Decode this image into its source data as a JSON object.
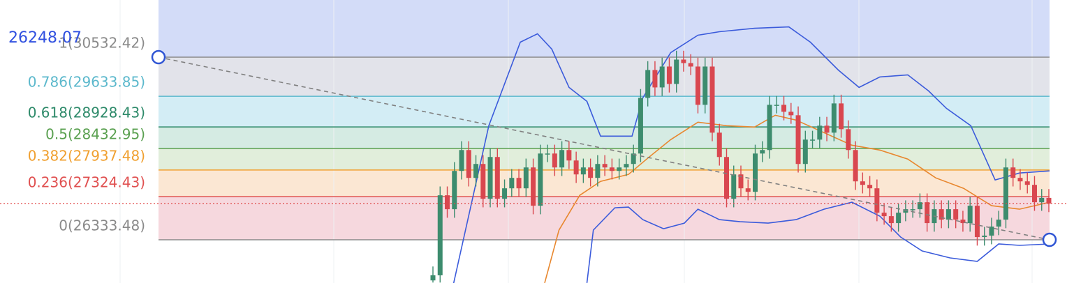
{
  "chart_data": {
    "type": "candlestick",
    "price_label": "26248.07",
    "ylim": [
      25340,
      31847
    ],
    "current_price": 27167,
    "fib_levels": [
      {
        "label": "1(30532.42)",
        "ratio": 1,
        "value": 30532.42,
        "color": "#8a8a8a",
        "fill": "#e2e3ea"
      },
      {
        "label": "0.786(29633.85)",
        "ratio": 0.786,
        "value": 29633.85,
        "color": "#5bb8cc",
        "fill": "#d3edf5"
      },
      {
        "label": "0.618(28928.43)",
        "ratio": 0.618,
        "value": 28928.43,
        "color": "#2e8a6a",
        "fill": "#d5ebe3"
      },
      {
        "label": "0.5(28432.95)",
        "ratio": 0.5,
        "value": 28432.95,
        "color": "#5aa050",
        "fill": "#e1eedb"
      },
      {
        "label": "0.382(27937.48)",
        "ratio": 0.382,
        "value": 27937.48,
        "color": "#f0a030",
        "fill": "#fbe7d3"
      },
      {
        "label": "0.236(27324.43)",
        "ratio": 0.236,
        "value": 27324.43,
        "color": "#e05050",
        "fill": "#f6d8de"
      },
      {
        "label": "0(26333.48)",
        "ratio": 0,
        "value": 26333.48,
        "color": "#8a8a8a",
        "fill": null
      }
    ],
    "up_color": "#3d8c6e",
    "down_color": "#d9474f",
    "candles": {
      "open": [
        25400,
        25517,
        27357,
        27037,
        27917,
        28397,
        27757,
        28077,
        27277,
        28237,
        27277,
        27517,
        27757,
        27517,
        27997,
        27117,
        28317,
        28317,
        27997,
        28397,
        28157,
        27837,
        27997,
        27757,
        28077,
        27997,
        27917,
        27997,
        28077,
        28317,
        29597,
        30237,
        29837,
        30317,
        29917,
        30477,
        30397,
        30317,
        29437,
        30317,
        28797,
        28237,
        27277,
        27837,
        27517,
        27437,
        28317,
        28397,
        29437,
        29437,
        29277,
        29197,
        28077,
        28637,
        28637,
        28957,
        28797,
        29469,
        28877,
        28397,
        27677,
        27597,
        27517,
        26957,
        26877,
        26717,
        26957,
        27037,
        27037,
        27197,
        26717,
        27037,
        26797,
        27037,
        26797,
        26717,
        27117,
        26397,
        26429,
        26637,
        26797,
        27997,
        27757,
        27677,
        27597,
        27197,
        27297
      ],
      "close": [
        25517,
        27357,
        27037,
        27917,
        28397,
        27757,
        28077,
        27277,
        28237,
        27277,
        27517,
        27757,
        27517,
        27997,
        27117,
        28317,
        28317,
        27997,
        28397,
        28157,
        27837,
        27997,
        27757,
        28077,
        27997,
        27917,
        27997,
        28077,
        28317,
        29597,
        30237,
        29837,
        30317,
        29917,
        30477,
        30397,
        30317,
        29437,
        30317,
        28797,
        28237,
        27277,
        27837,
        27517,
        27437,
        28317,
        28397,
        29437,
        29437,
        29277,
        29197,
        28077,
        28637,
        28637,
        28957,
        28797,
        29469,
        28877,
        28397,
        27677,
        27597,
        27517,
        26957,
        26877,
        26717,
        26957,
        27037,
        27037,
        27197,
        26717,
        27037,
        26797,
        27037,
        26797,
        26717,
        27117,
        26397,
        26429,
        26637,
        26797,
        27997,
        27757,
        27677,
        27597,
        27197,
        27297,
        27167
      ],
      "high": [
        25720,
        27560,
        27560,
        28120,
        28600,
        28600,
        28280,
        28280,
        28440,
        28440,
        27720,
        27960,
        27960,
        28200,
        28200,
        28520,
        28520,
        28520,
        28600,
        28600,
        28360,
        28200,
        28200,
        28280,
        28280,
        28200,
        28200,
        28280,
        28520,
        29800,
        30440,
        30440,
        30520,
        30520,
        30680,
        30680,
        30600,
        30520,
        30520,
        30520,
        29000,
        28440,
        28040,
        28040,
        27720,
        28520,
        28600,
        29640,
        29640,
        29640,
        29480,
        29400,
        28840,
        28840,
        29160,
        29160,
        29670,
        29670,
        29080,
        28600,
        27880,
        27800,
        27720,
        27160,
        27080,
        27160,
        27240,
        27240,
        27400,
        27400,
        27240,
        27240,
        27240,
        27240,
        27000,
        27320,
        27320,
        26630,
        26840,
        27000,
        28200,
        28200,
        27960,
        27880,
        27800,
        27500,
        27500
      ],
      "low": [
        25350,
        25350,
        26840,
        26840,
        27720,
        27560,
        27560,
        27080,
        27080,
        27080,
        27080,
        27320,
        27320,
        27320,
        26920,
        26920,
        28120,
        27800,
        27800,
        27960,
        27640,
        27640,
        27560,
        27560,
        27800,
        27720,
        27720,
        27800,
        27880,
        28120,
        29400,
        29640,
        29640,
        29720,
        29720,
        30200,
        30120,
        29240,
        29240,
        28600,
        28040,
        27080,
        27080,
        27320,
        27240,
        27240,
        28120,
        28200,
        29240,
        29080,
        29000,
        27880,
        27880,
        28440,
        28440,
        28600,
        28600,
        28680,
        28200,
        27480,
        27400,
        27320,
        26760,
        26680,
        26520,
        26520,
        26760,
        26840,
        26840,
        26520,
        26520,
        26600,
        26600,
        26600,
        26520,
        26520,
        26200,
        26200,
        26230,
        26440,
        26600,
        27560,
        27480,
        27400,
        27000,
        27000,
        26970
      ]
    },
    "bands": [
      {
        "color": "#3b5bdb",
        "x": [
          2.9,
          7.8,
          12.2,
          14.6,
          16.6,
          19,
          21.5,
          23.4,
          27.8,
          29.3,
          33.2,
          37,
          40,
          44.9,
          49.7,
          52.7,
          56.6,
          59.5,
          62.4,
          66.3,
          69.2,
          71.7,
          75.1,
          78.5,
          81.9,
          86.1
        ],
        "values": [
          25340,
          28957,
          30877,
          31069,
          30717,
          29837,
          29517,
          28717,
          28717,
          29597,
          30637,
          31037,
          31117,
          31197,
          31229,
          30877,
          30237,
          29837,
          30077,
          30125,
          29757,
          29357,
          28957,
          27709,
          27869,
          27917
        ]
      },
      {
        "color": "#3b5bdb",
        "x": [
          21.5,
          22.4,
          25.4,
          27.3,
          29.3,
          32.2,
          35.1,
          37,
          40,
          42.9,
          46.8,
          50.7,
          54.6,
          58.5,
          62.4,
          65.3,
          68.3,
          72.2,
          76,
          79,
          81.9,
          86.1
        ],
        "values": [
          25341,
          26557,
          27069,
          27085,
          26797,
          26589,
          26717,
          27037,
          26797,
          26749,
          26717,
          26797,
          27037,
          27197,
          26877,
          26397,
          26077,
          25917,
          25837,
          26237,
          26205,
          26237
        ]
      },
      {
        "color": "#e8872e",
        "x": [
          15.6,
          17.6,
          20.5,
          23.4,
          27.3,
          30.2,
          33.2,
          37,
          41,
          44.9,
          47.8,
          50.7,
          54.6,
          58.5,
          62.4,
          66.3,
          70.2,
          74.1,
          78,
          81.9,
          86.1
        ],
        "values": [
          25341,
          26557,
          27357,
          27677,
          27837,
          28237,
          28637,
          29037,
          28957,
          28925,
          29197,
          29085,
          28797,
          28509,
          28397,
          28189,
          27757,
          27517,
          27117,
          27037,
          27197
        ]
      }
    ]
  }
}
